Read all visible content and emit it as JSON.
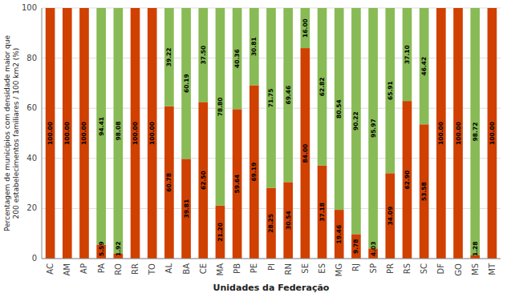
{
  "chart_data": {
    "type": "bar",
    "stacked": true,
    "categories": [
      "AC",
      "AM",
      "AP",
      "PA",
      "RO",
      "RR",
      "TO",
      "AL",
      "BA",
      "CE",
      "MA",
      "PB",
      "PE",
      "PI",
      "RN",
      "SE",
      "ES",
      "MG",
      "RJ",
      "SP",
      "PR",
      "RS",
      "SC",
      "DF",
      "GO",
      "MS",
      "MT"
    ],
    "series": [
      {
        "color": "#d04000",
        "values": [
          100.0,
          100.0,
          100.0,
          5.59,
          1.92,
          100.0,
          100.0,
          60.78,
          39.81,
          62.5,
          21.2,
          59.64,
          69.19,
          28.25,
          30.54,
          84.0,
          37.18,
          19.46,
          9.78,
          4.03,
          34.09,
          62.9,
          53.58,
          100.0,
          100.0,
          1.28,
          100.0
        ],
        "value_labels": [
          "100.00",
          "100.00",
          "100.00",
          "5.59",
          "1.92",
          "100.00",
          "100.00",
          "60.78",
          "39.81",
          "62.50",
          "21.20",
          "59.64",
          "69.19",
          "28.25",
          "30.54",
          "84.00",
          "37.18",
          "19.46",
          "9.78",
          "4.03",
          "34.09",
          "62.90",
          "53.58",
          "100.00",
          "100.00",
          "1.28",
          "100.00"
        ]
      },
      {
        "color": "#88bb55",
        "values": [
          0.0,
          0.0,
          0.0,
          94.41,
          98.08,
          0.0,
          0.0,
          39.22,
          60.19,
          37.5,
          78.8,
          40.36,
          30.81,
          71.75,
          69.46,
          16.0,
          62.82,
          80.54,
          90.22,
          95.97,
          65.91,
          37.1,
          46.42,
          0.0,
          0.0,
          98.72,
          0.0
        ],
        "value_labels": [
          null,
          null,
          null,
          "94.41",
          "98.08",
          null,
          null,
          "39.22",
          "60.19",
          "37.50",
          "78.80",
          "40.36",
          "30.81",
          "71.75",
          "69.46",
          "16.00",
          "62.82",
          "80.54",
          "90.22",
          "95.97",
          "65.91",
          "37.10",
          "46.42",
          null,
          null,
          "98.72",
          null
        ]
      }
    ],
    "xlabel": "Unidades da Federação",
    "ylabel": "Percentagem de municípios com densidade maior que\n200 estabelecimentos familiares / 100 km2 (%)",
    "ylim": [
      0,
      100
    ],
    "yticks": [
      0,
      20,
      40,
      60,
      80,
      100
    ],
    "grid": true,
    "data_labels": true
  }
}
